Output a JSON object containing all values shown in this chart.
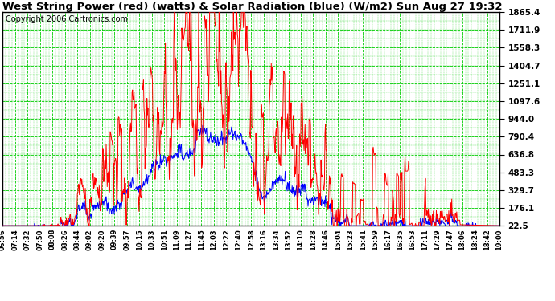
{
  "title": "West String Power (red) (watts) & Solar Radiation (blue) (W/m2) Sun Aug 27 19:32",
  "copyright": "Copyright 2006 Cartronics.com",
  "yticks": [
    22.5,
    176.1,
    329.7,
    483.3,
    636.8,
    790.4,
    944.0,
    1097.6,
    1251.1,
    1404.7,
    1558.3,
    1711.9,
    1865.4
  ],
  "ymin": 22.5,
  "ymax": 1865.4,
  "xtick_labels": [
    "06:56",
    "07:14",
    "07:32",
    "07:50",
    "08:08",
    "08:26",
    "08:44",
    "09:02",
    "09:20",
    "09:39",
    "09:57",
    "10:15",
    "10:33",
    "10:51",
    "11:09",
    "11:27",
    "11:45",
    "12:03",
    "12:22",
    "12:40",
    "12:58",
    "13:16",
    "13:34",
    "13:52",
    "14:10",
    "14:28",
    "14:46",
    "15:04",
    "15:23",
    "15:41",
    "15:59",
    "16:17",
    "16:35",
    "16:53",
    "17:11",
    "17:29",
    "17:47",
    "18:06",
    "18:24",
    "18:42",
    "19:00"
  ],
  "bg_color": "#ffffff",
  "plot_bg": "#ffffff",
  "grid_color": "#00cc00",
  "title_fontsize": 9.5,
  "copyright_fontsize": 7
}
